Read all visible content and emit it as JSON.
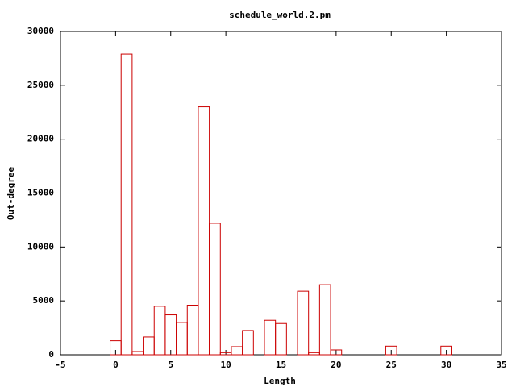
{
  "chart_data": {
    "type": "bar",
    "title": "schedule_world.2.pm",
    "xlabel": "Length",
    "ylabel": "Out-degree",
    "x": [
      0,
      1,
      2,
      3,
      4,
      5,
      6,
      7,
      8,
      9,
      10,
      11,
      12,
      14,
      15,
      17,
      18,
      19,
      20,
      25,
      30
    ],
    "values": [
      1300,
      27900,
      300,
      1650,
      4500,
      3700,
      3000,
      4600,
      23000,
      12200,
      200,
      750,
      2250,
      3200,
      2900,
      5900,
      200,
      6500,
      450,
      800,
      800
    ],
    "color": "#cc0000",
    "bar_width": 1,
    "xlim": [
      -5,
      35
    ],
    "xticks": [
      -5,
      0,
      5,
      10,
      15,
      20,
      25,
      30,
      35
    ],
    "ylim": [
      0,
      30000
    ],
    "yticks": [
      0,
      5000,
      10000,
      15000,
      20000,
      25000,
      30000
    ]
  }
}
